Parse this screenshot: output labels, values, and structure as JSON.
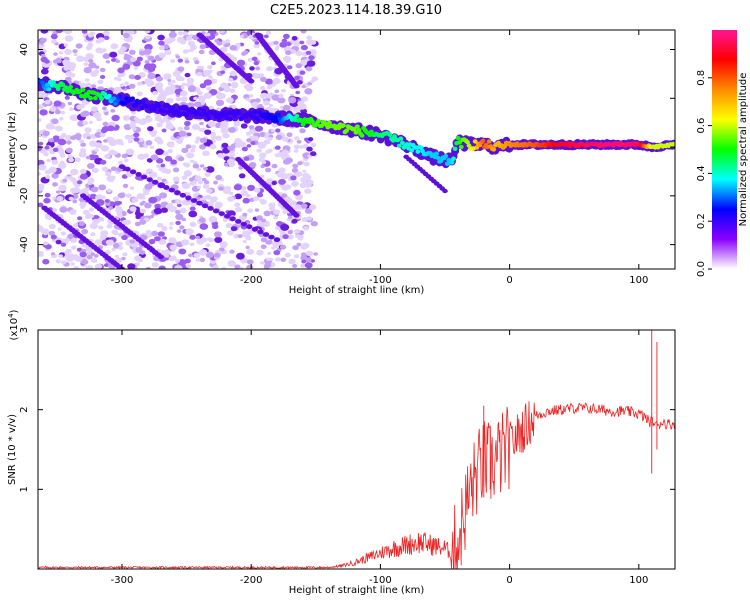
{
  "title": "C2E5.2023.114.18.39.G10",
  "chart_data": [
    {
      "type": "heatmap",
      "xlabel": "Height of straight line (km)",
      "ylabel": "Frequency (Hz)",
      "xlim": [
        -365,
        128
      ],
      "ylim": [
        -50,
        48
      ],
      "xticks": [
        -300,
        -200,
        -100,
        0,
        100
      ],
      "yticks": [
        -40,
        -20,
        0,
        20,
        40
      ],
      "grid": false,
      "colorbar": {
        "label": "Normalized spectral amplitude",
        "range": [
          0,
          1
        ],
        "ticks": [
          0.0,
          0.2,
          0.4,
          0.6,
          0.8
        ],
        "colormap": [
          "#ff1493",
          "#ff0000",
          "#ff8c00",
          "#ffff00",
          "#00ff00",
          "#00ffff",
          "#0000ff",
          "#8a00ff",
          "#ffffff"
        ]
      },
      "trace": {
        "x": [
          -365,
          -350,
          -335,
          -320,
          -300,
          -280,
          -260,
          -240,
          -220,
          -200,
          -180,
          -160,
          -140,
          -120,
          -100,
          -80,
          -60,
          -45,
          -40,
          -30,
          -20,
          -10,
          0,
          20,
          40,
          60,
          80,
          100,
          110,
          128
        ],
        "y": [
          26,
          25,
          23,
          21,
          19,
          17,
          15,
          14,
          13,
          13,
          12,
          11,
          9,
          7,
          5,
          1,
          -4,
          -6,
          2,
          1,
          1,
          0,
          1,
          1,
          1,
          1,
          1,
          1,
          0,
          1
        ],
        "amplitude": [
          0.25,
          0.45,
          0.5,
          0.5,
          0.25,
          0.2,
          0.2,
          0.2,
          0.2,
          0.2,
          0.25,
          0.5,
          0.55,
          0.55,
          0.45,
          0.4,
          0.35,
          0.35,
          0.5,
          0.6,
          0.8,
          0.7,
          0.75,
          0.8,
          0.9,
          0.95,
          0.97,
          0.95,
          0.6,
          0.6
        ]
      },
      "streaks": [
        {
          "x": [
            -300,
            -180
          ],
          "y": [
            -8,
            -38
          ]
        },
        {
          "x": [
            -330,
            -270
          ],
          "y": [
            -20,
            -45
          ]
        },
        {
          "x": [
            -240,
            -200
          ],
          "y": [
            46,
            27
          ]
        },
        {
          "x": [
            -195,
            -165
          ],
          "y": [
            46,
            25
          ]
        },
        {
          "x": [
            -210,
            -165
          ],
          "y": [
            -5,
            -28
          ]
        },
        {
          "x": [
            -360,
            -300
          ],
          "y": [
            -25,
            -50
          ]
        }
      ],
      "noise_x_range": [
        -365,
        -150
      ]
    },
    {
      "type": "line",
      "xlabel": "Height of straight line (km)",
      "ylabel": "SNR (10 * v/v)",
      "y_multiplier_label": "(x10",
      "y_multiplier_exponent": "4",
      "y_multiplier_close": ")",
      "xlim": [
        -365,
        128
      ],
      "ylim": [
        0,
        3
      ],
      "xticks": [
        -300,
        -200,
        -100,
        0,
        100
      ],
      "yticks": [
        1,
        2,
        3
      ],
      "grid": false,
      "line_color": "#ee2222",
      "series": [
        {
          "x": [
            -365,
            -300,
            -200,
            -140,
            -130,
            -120,
            -110,
            -100,
            -90,
            -80,
            -70,
            -60,
            -50,
            -45,
            -40,
            -35,
            -30,
            -25,
            -20,
            -15,
            -10,
            -5,
            0,
            10,
            20,
            30,
            40,
            50,
            60,
            70,
            80,
            90,
            100,
            105,
            108,
            111,
            114,
            118,
            122,
            128
          ],
          "y": [
            0.02,
            0.02,
            0.02,
            0.02,
            0.04,
            0.08,
            0.14,
            0.2,
            0.26,
            0.3,
            0.34,
            0.3,
            0.26,
            0.2,
            0.35,
            0.7,
            1.0,
            1.2,
            1.35,
            1.3,
            1.38,
            1.45,
            1.55,
            1.75,
            1.92,
            1.98,
            2.0,
            2.02,
            2.02,
            2.0,
            1.98,
            1.98,
            1.95,
            1.9,
            1.85,
            1.85,
            1.8,
            1.85,
            1.82,
            1.82
          ]
        }
      ]
    }
  ]
}
